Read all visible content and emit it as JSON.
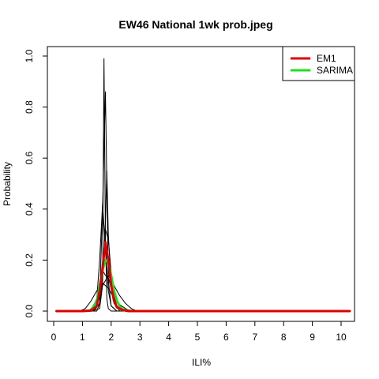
{
  "chart_data": {
    "type": "line",
    "title": "EW46 National 1wk prob.jpeg",
    "xlabel": "ILI%",
    "ylabel": "Probability",
    "xlim": [
      0,
      10.3
    ],
    "ylim": [
      0,
      1.0
    ],
    "x_ticks": [
      0,
      1,
      2,
      3,
      4,
      5,
      6,
      7,
      8,
      9,
      10
    ],
    "x_tick_labels": [
      "0",
      "1",
      "2",
      "3",
      "4",
      "5",
      "6",
      "7",
      "8",
      "9",
      "10"
    ],
    "y_ticks": [
      0.0,
      0.2,
      0.4,
      0.6,
      0.8,
      1.0
    ],
    "y_tick_labels": [
      "0.0",
      "0.2",
      "0.4",
      "0.6",
      "0.8",
      "1.0"
    ],
    "grid": false,
    "legend_position": "top-right",
    "legend": [
      {
        "label": "EM1",
        "color": "#dd0000"
      },
      {
        "label": "SARIMA",
        "color": "#22dd22"
      }
    ],
    "series": [
      {
        "name": "EM1",
        "color": "#dd0000",
        "width": 3,
        "x": [
          0.1,
          1.0,
          1.3,
          1.5,
          1.6,
          1.7,
          1.8,
          1.9,
          2.0,
          2.1,
          2.2,
          2.4,
          2.6,
          3.0,
          10.3
        ],
        "y": [
          0.0,
          0.0,
          0.002,
          0.02,
          0.08,
          0.17,
          0.27,
          0.2,
          0.1,
          0.04,
          0.015,
          0.004,
          0.0,
          0.0,
          0.0
        ]
      },
      {
        "name": "SARIMA",
        "color": "#22dd22",
        "width": 3,
        "x": [
          0.1,
          1.0,
          1.3,
          1.5,
          1.6,
          1.7,
          1.8,
          1.9,
          2.0,
          2.1,
          2.2,
          2.3,
          2.4,
          2.6,
          2.8,
          10.3
        ],
        "y": [
          0.0,
          0.0,
          0.003,
          0.04,
          0.1,
          0.16,
          0.2,
          0.19,
          0.14,
          0.08,
          0.04,
          0.018,
          0.007,
          0.002,
          0.0,
          0.0
        ]
      },
      {
        "color": "#000000",
        "width": 1,
        "x": [
          0.1,
          1.3,
          1.6,
          1.7,
          1.75,
          1.8,
          1.85,
          1.9,
          2.0,
          2.1,
          10.3
        ],
        "y": [
          0.0,
          0.0,
          0.01,
          0.1,
          0.99,
          0.3,
          0.05,
          0.01,
          0.0,
          0.0,
          0.0
        ]
      },
      {
        "color": "#000000",
        "width": 1,
        "x": [
          0.1,
          1.4,
          1.6,
          1.7,
          1.8,
          1.9,
          2.0,
          2.2,
          10.3
        ],
        "y": [
          0.0,
          0.0,
          0.05,
          0.4,
          0.86,
          0.12,
          0.02,
          0.0,
          0.0
        ]
      },
      {
        "color": "#000000",
        "width": 1,
        "x": [
          0.1,
          1.3,
          1.5,
          1.6,
          1.7,
          1.8,
          1.9,
          2.0,
          2.2,
          10.3
        ],
        "y": [
          0.0,
          0.0,
          0.05,
          0.2,
          0.42,
          0.25,
          0.08,
          0.02,
          0.0,
          0.0
        ]
      },
      {
        "color": "#000000",
        "width": 1,
        "x": [
          0.1,
          1.5,
          1.6,
          1.7,
          1.8,
          1.85,
          1.9,
          2.0,
          2.1,
          2.3,
          10.3
        ],
        "y": [
          0.0,
          0.0,
          0.03,
          0.12,
          0.35,
          0.55,
          0.3,
          0.1,
          0.03,
          0.0,
          0.0
        ]
      },
      {
        "color": "#000000",
        "width": 1,
        "x": [
          0.1,
          1.4,
          1.6,
          1.7,
          1.8,
          1.9,
          2.0,
          2.1,
          2.2,
          2.4,
          10.3
        ],
        "y": [
          0.0,
          0.0,
          0.03,
          0.15,
          0.32,
          0.28,
          0.15,
          0.06,
          0.02,
          0.0,
          0.0
        ]
      },
      {
        "color": "#000000",
        "width": 1,
        "x": [
          0.1,
          1.3,
          1.5,
          1.6,
          1.7,
          1.8,
          1.9,
          2.0,
          2.1,
          2.2,
          2.4,
          10.3
        ],
        "y": [
          0.0,
          0.0,
          0.04,
          0.1,
          0.16,
          0.14,
          0.13,
          0.09,
          0.05,
          0.02,
          0.0,
          0.0
        ]
      },
      {
        "color": "#000000",
        "width": 1,
        "x": [
          0.1,
          0.9,
          1.1,
          1.3,
          1.5,
          1.7,
          1.9,
          2.1,
          2.3,
          2.5,
          2.7,
          10.3
        ],
        "y": [
          0.0,
          0.0,
          0.01,
          0.04,
          0.08,
          0.11,
          0.09,
          0.05,
          0.025,
          0.01,
          0.0,
          0.0
        ]
      },
      {
        "color": "#000000",
        "width": 1,
        "x": [
          0.1,
          1.2,
          1.5,
          1.7,
          1.9,
          2.1,
          2.3,
          2.5,
          2.7,
          2.9,
          10.3
        ],
        "y": [
          0.0,
          0.0,
          0.03,
          0.1,
          0.14,
          0.1,
          0.06,
          0.03,
          0.01,
          0.0,
          0.0
        ]
      }
    ]
  }
}
